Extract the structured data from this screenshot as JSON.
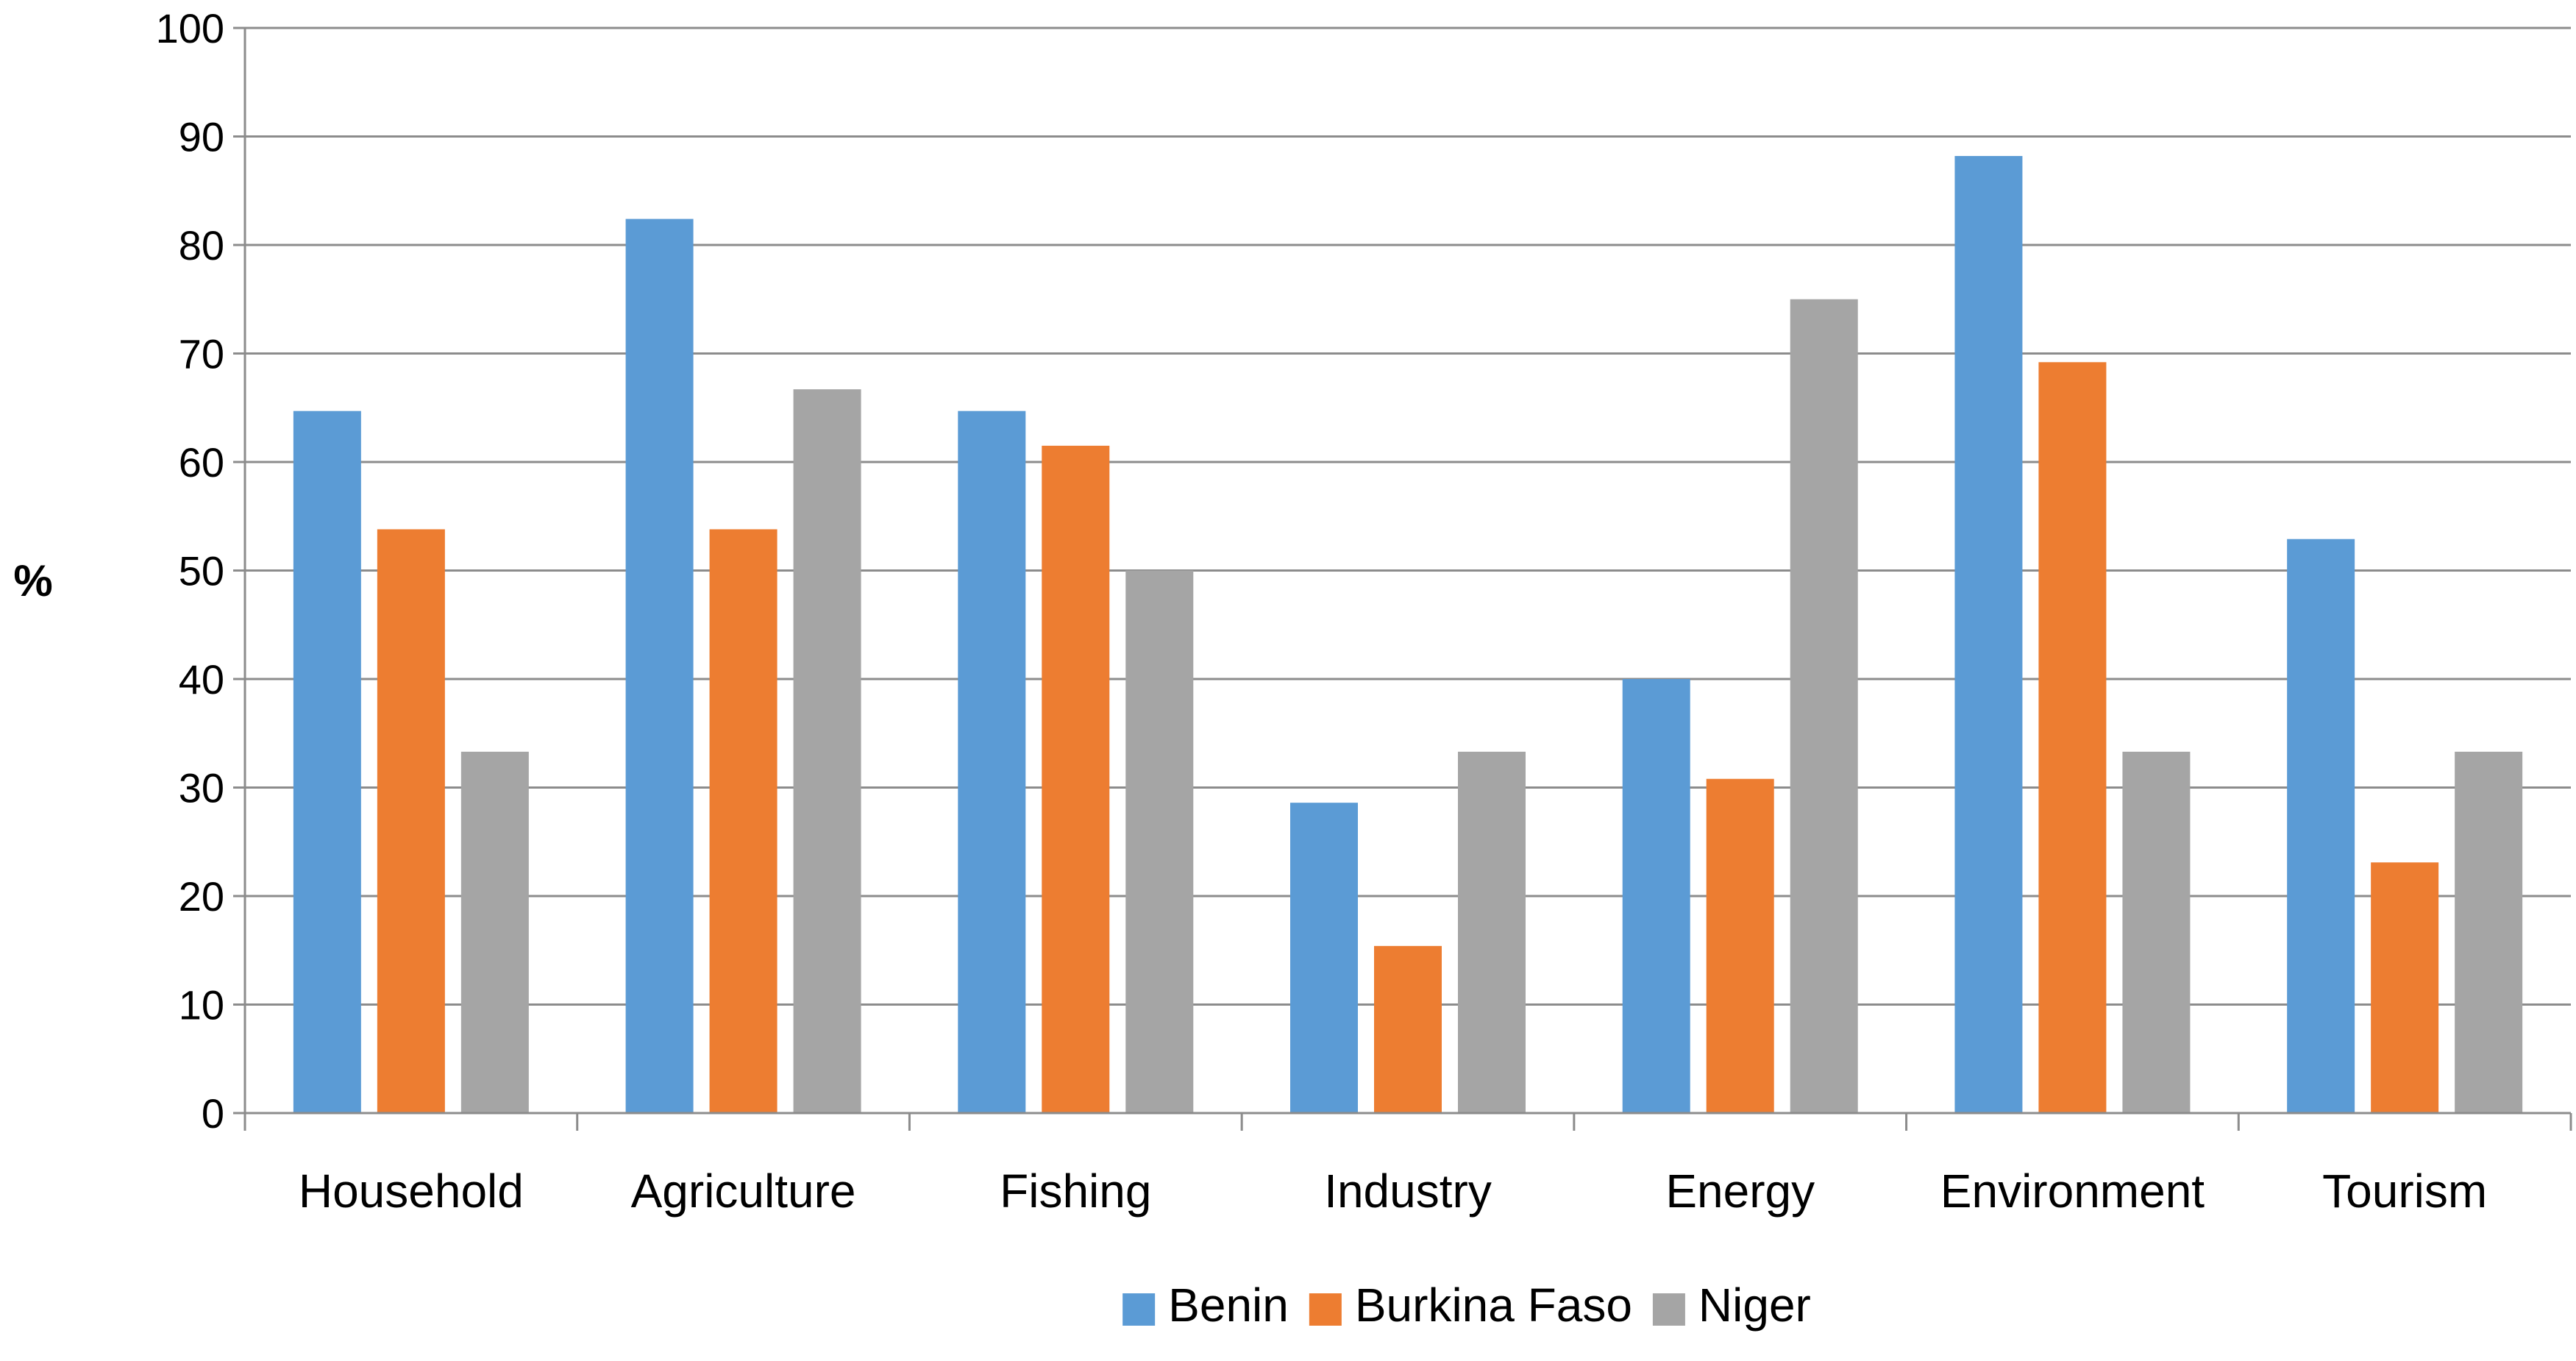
{
  "chart_data": {
    "type": "bar",
    "title": "",
    "xlabel": "",
    "ylabel": "%",
    "ylim": [
      0,
      100
    ],
    "yticks": [
      0,
      10,
      20,
      30,
      40,
      50,
      60,
      70,
      80,
      90,
      100
    ],
    "grid": true,
    "legend_position": "bottom",
    "categories": [
      "Household",
      "Agriculture",
      "Fishing",
      "Industry",
      "Energy",
      "Environment",
      "Tourism"
    ],
    "series": [
      {
        "name": "Benin",
        "color": "#5b9bd5",
        "values": [
          64.7,
          82.4,
          64.7,
          28.6,
          40.0,
          88.2,
          52.9
        ]
      },
      {
        "name": "Burkina Faso",
        "color": "#ed7d31",
        "values": [
          53.8,
          53.8,
          61.5,
          15.4,
          30.8,
          69.2,
          23.1
        ]
      },
      {
        "name": "Niger",
        "color": "#a5a5a5",
        "values": [
          33.3,
          66.7,
          50.0,
          33.3,
          75.0,
          33.3,
          33.3
        ]
      }
    ]
  }
}
